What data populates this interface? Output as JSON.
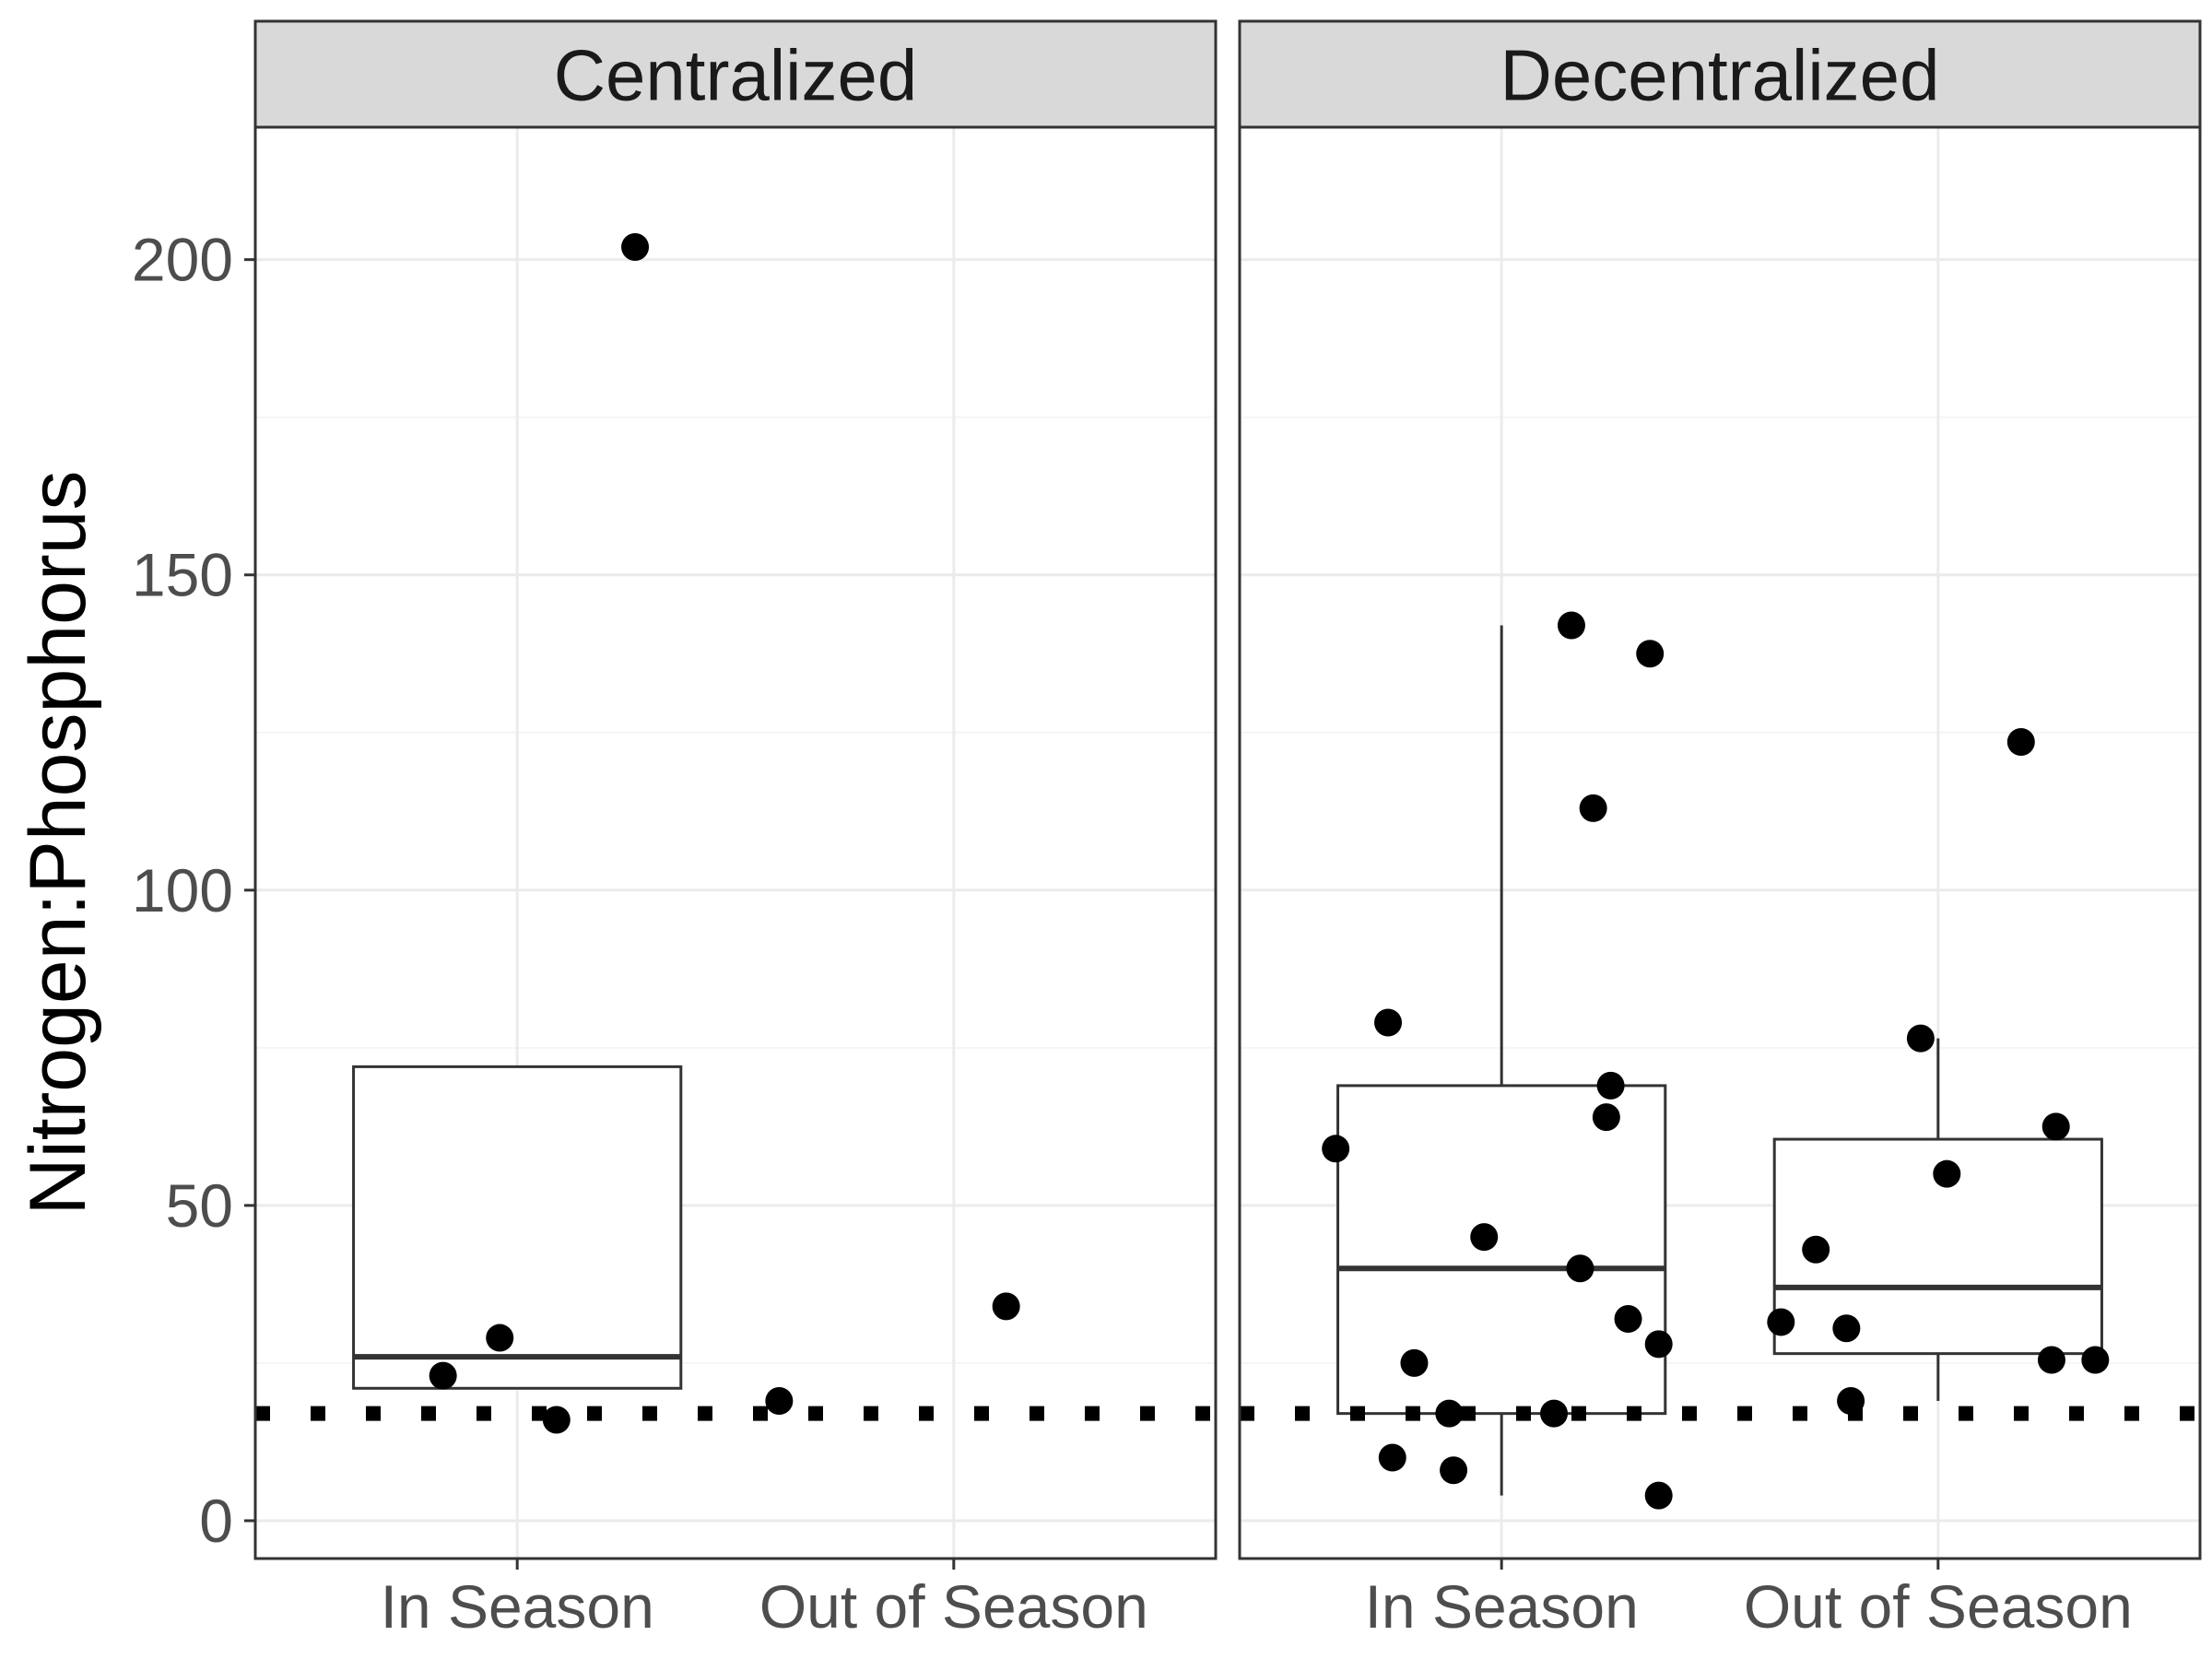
{
  "chart_data": {
    "type": "box",
    "ylabel": "Nitrogen:Phosphorus",
    "xlabel": "",
    "ylim": [
      -6,
      221
    ],
    "yticks": [
      0,
      50,
      100,
      150,
      200
    ],
    "categories": [
      "In Season",
      "Out of Season"
    ],
    "reference_line": {
      "y": 17,
      "style": "dotted",
      "color": "#000000"
    },
    "grid": true,
    "panels": [
      {
        "name": "Centralized",
        "boxes": [
          {
            "category": "In Season",
            "min": 21,
            "q1": 21,
            "median": 26,
            "q3": 72,
            "max": 72
          }
        ],
        "points": [
          {
            "category": "In Season",
            "jitter": -0.17,
            "y": 23
          },
          {
            "category": "In Season",
            "jitter": -0.04,
            "y": 29
          },
          {
            "category": "In Season",
            "jitter": 0.09,
            "y": 16
          },
          {
            "category": "In Season",
            "jitter": 0.27,
            "y": 202
          },
          {
            "category": "Out of Season",
            "jitter": -0.4,
            "y": 19
          },
          {
            "category": "Out of Season",
            "jitter": 0.12,
            "y": 34
          }
        ]
      },
      {
        "name": "Decentralized",
        "boxes": [
          {
            "category": "In Season",
            "min": 4,
            "q1": 17,
            "median": 40,
            "q3": 69,
            "max": 142
          },
          {
            "category": "Out of Season",
            "min": 19,
            "q1": 26.5,
            "median": 37,
            "q3": 60.5,
            "max": 76.5
          }
        ],
        "points": [
          {
            "category": "In Season",
            "jitter": -0.38,
            "y": 59
          },
          {
            "category": "In Season",
            "jitter": -0.26,
            "y": 79
          },
          {
            "category": "In Season",
            "jitter": -0.25,
            "y": 10
          },
          {
            "category": "In Season",
            "jitter": -0.2,
            "y": 25
          },
          {
            "category": "In Season",
            "jitter": -0.12,
            "y": 17
          },
          {
            "category": "In Season",
            "jitter": -0.11,
            "y": 8
          },
          {
            "category": "In Season",
            "jitter": -0.04,
            "y": 45
          },
          {
            "category": "In Season",
            "jitter": 0.12,
            "y": 17
          },
          {
            "category": "In Season",
            "jitter": 0.16,
            "y": 142
          },
          {
            "category": "In Season",
            "jitter": 0.18,
            "y": 40
          },
          {
            "category": "In Season",
            "jitter": 0.21,
            "y": 113
          },
          {
            "category": "In Season",
            "jitter": 0.24,
            "y": 64
          },
          {
            "category": "In Season",
            "jitter": 0.25,
            "y": 69
          },
          {
            "category": "In Season",
            "jitter": 0.29,
            "y": 32
          },
          {
            "category": "In Season",
            "jitter": 0.34,
            "y": 137.5
          },
          {
            "category": "In Season",
            "jitter": 0.36,
            "y": 28
          },
          {
            "category": "In Season",
            "jitter": 0.36,
            "y": 4
          },
          {
            "category": "Out of Season",
            "jitter": -0.36,
            "y": 31.5
          },
          {
            "category": "Out of Season",
            "jitter": -0.28,
            "y": 43
          },
          {
            "category": "Out of Season",
            "jitter": -0.21,
            "y": 30.5
          },
          {
            "category": "Out of Season",
            "jitter": -0.2,
            "y": 19
          },
          {
            "category": "Out of Season",
            "jitter": -0.04,
            "y": 76.5
          },
          {
            "category": "Out of Season",
            "jitter": 0.02,
            "y": 55
          },
          {
            "category": "Out of Season",
            "jitter": 0.19,
            "y": 123.5
          },
          {
            "category": "Out of Season",
            "jitter": 0.26,
            "y": 25.5
          },
          {
            "category": "Out of Season",
            "jitter": 0.27,
            "y": 62.5
          },
          {
            "category": "Out of Season",
            "jitter": 0.36,
            "y": 25.5
          }
        ]
      }
    ],
    "colors": {
      "strip_fill": "#d9d9d9",
      "panel_border": "#333333",
      "grid_major": "#ebebeb",
      "grid_minor": "#f5f5f5",
      "point": "#000000",
      "box_line": "#333333",
      "tick_text": "#4d4d4d"
    }
  }
}
